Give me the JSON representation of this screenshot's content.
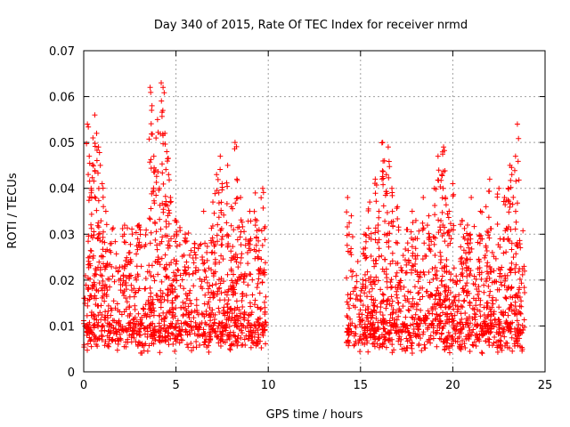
{
  "chart_data": {
    "type": "scatter",
    "title": "Day 340 of 2015, Rate Of TEC Index for receiver nrmd",
    "xlabel": "GPS time / hours",
    "ylabel": "ROTI / TECUs",
    "xlim": [
      0,
      25
    ],
    "ylim": [
      0,
      0.07
    ],
    "x_ticks": [
      "0",
      "5",
      "10",
      "15",
      "20",
      "25"
    ],
    "y_ticks": [
      "0",
      "0.01",
      "0.02",
      "0.03",
      "0.04",
      "0.05",
      "0.06",
      "0.07"
    ],
    "grid": true,
    "legend": "none",
    "marker": "+",
    "color": "#ff0000",
    "data_gap_hours": [
      9.9,
      14.2
    ],
    "baseline_band": [
      0.005,
      0.02
    ],
    "series": [
      {
        "x": [
          0.2,
          0.3,
          0.4,
          0.5,
          0.6,
          0.7,
          0.8,
          0.9,
          1.0,
          1.2,
          1.5,
          2.2,
          2.5,
          3.0,
          3.6,
          3.7,
          3.8,
          3.9,
          4.0,
          4.1,
          4.2,
          4.3,
          4.4,
          4.5,
          4.6,
          4.7,
          5.0,
          5.5,
          6.0,
          6.5,
          7.0,
          7.2,
          7.4,
          7.5,
          7.8,
          8.0,
          8.2,
          8.3,
          8.5,
          9.0,
          9.3,
          9.5,
          9.7,
          14.3,
          14.5,
          15.2,
          15.5,
          15.8,
          16.0,
          16.2,
          16.3,
          16.4,
          16.5,
          16.7,
          17.0,
          17.5,
          17.8,
          18.0,
          18.4,
          18.7,
          19.0,
          19.2,
          19.4,
          19.5,
          19.6,
          19.8,
          20.0,
          20.5,
          20.8,
          21.0,
          21.5,
          21.8,
          22.0,
          22.5,
          22.8,
          23.0,
          23.1,
          23.2,
          23.4,
          23.5
        ],
        "y": [
          0.054,
          0.047,
          0.04,
          0.051,
          0.056,
          0.052,
          0.049,
          0.045,
          0.041,
          0.035,
          0.028,
          0.03,
          0.026,
          0.032,
          0.062,
          0.058,
          0.047,
          0.044,
          0.055,
          0.04,
          0.063,
          0.062,
          0.052,
          0.048,
          0.043,
          0.038,
          0.033,
          0.03,
          0.028,
          0.035,
          0.037,
          0.043,
          0.047,
          0.041,
          0.045,
          0.036,
          0.05,
          0.042,
          0.038,
          0.035,
          0.039,
          0.031,
          0.04,
          0.038,
          0.034,
          0.03,
          0.037,
          0.042,
          0.035,
          0.05,
          0.046,
          0.043,
          0.049,
          0.04,
          0.036,
          0.031,
          0.035,
          0.033,
          0.038,
          0.034,
          0.04,
          0.047,
          0.043,
          0.049,
          0.038,
          0.035,
          0.041,
          0.033,
          0.032,
          0.038,
          0.035,
          0.036,
          0.042,
          0.04,
          0.038,
          0.04,
          0.045,
          0.043,
          0.047,
          0.054
        ]
      }
    ]
  }
}
